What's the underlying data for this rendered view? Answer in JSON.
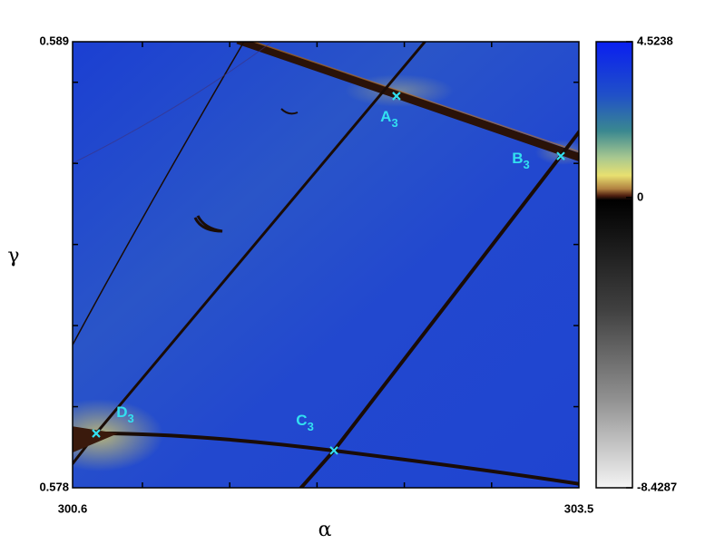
{
  "chart_data": {
    "type": "heatmap",
    "x_label": "α",
    "y_label": "γ",
    "xlim": [
      300.6,
      303.5
    ],
    "ylim": [
      0.578,
      0.589
    ],
    "xticks": [
      300.6,
      303.5
    ],
    "yticks": [
      0.578,
      0.589
    ],
    "xminor_ticks": [
      301.0,
      301.5,
      302.0,
      302.5,
      303.0
    ],
    "yminor_ticks": [
      0.58,
      0.582,
      0.584,
      0.586,
      0.588
    ],
    "colorbar": {
      "lim": [
        -8.4287,
        4.5238
      ],
      "ticks": [
        -8.4287,
        0,
        4.5238
      ]
    },
    "points": {
      "color": "#33e0f0",
      "labels": [
        "A3",
        "B3",
        "C3",
        "D3"
      ],
      "x": [
        302.455,
        303.396,
        302.097,
        300.735
      ],
      "y": [
        0.58766,
        0.58618,
        0.57892,
        0.57934
      ]
    }
  }
}
